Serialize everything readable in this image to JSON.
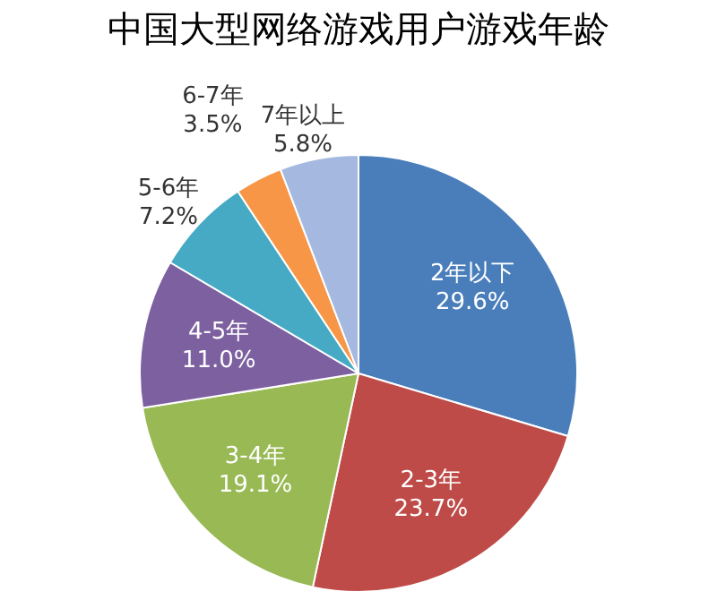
{
  "chart_data": {
    "type": "pie",
    "title": "中国大型网络游戏用户游戏年龄",
    "categories": [
      "2年以下",
      "2-3年",
      "3-4年",
      "4-5年",
      "5-6年",
      "6-7年",
      "7年以上"
    ],
    "values": [
      29.6,
      23.7,
      19.1,
      11.0,
      7.2,
      3.5,
      5.8
    ],
    "value_labels": [
      "29.6%",
      "23.7%",
      "19.1%",
      "11.0%",
      "7.2%",
      "3.5%",
      "5.8%"
    ],
    "colors": [
      "#4a7ebb",
      "#be4b48",
      "#98b954",
      "#7d60a0",
      "#46aac5",
      "#f79646",
      "#a5b9e0"
    ],
    "legend": false
  }
}
